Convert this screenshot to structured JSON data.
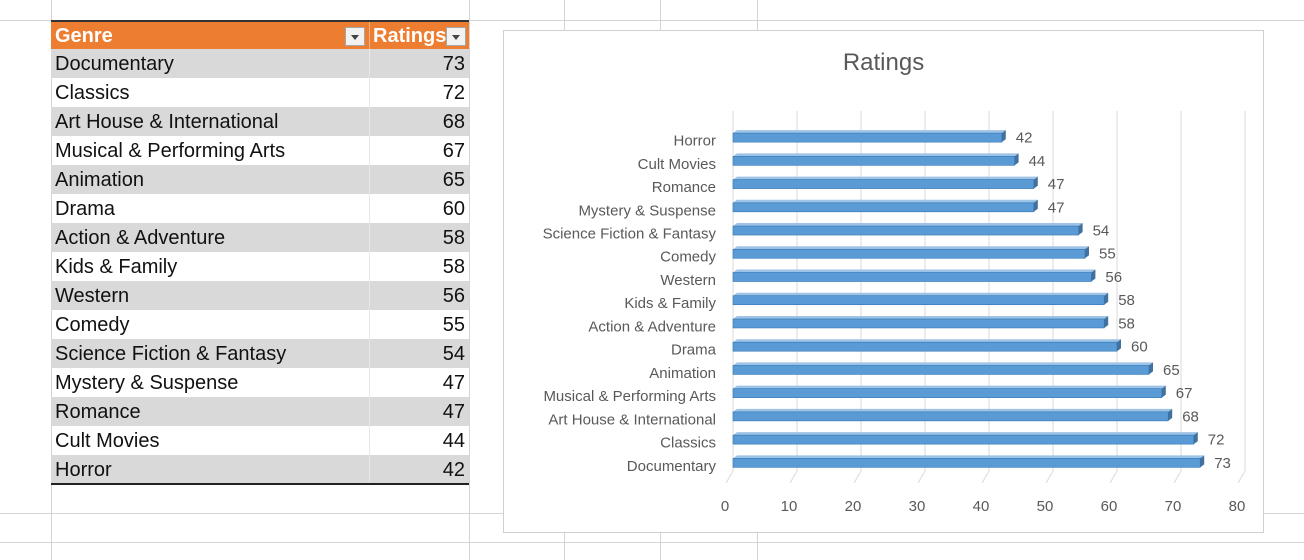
{
  "table": {
    "headers": [
      "Genre",
      "Ratings"
    ],
    "rows": [
      [
        "Documentary",
        "73"
      ],
      [
        "Classics",
        "72"
      ],
      [
        "Art House & International",
        "68"
      ],
      [
        "Musical & Performing Arts",
        "67"
      ],
      [
        "Animation",
        "65"
      ],
      [
        "Drama",
        "60"
      ],
      [
        "Action & Adventure",
        "58"
      ],
      [
        "Kids & Family",
        "58"
      ],
      [
        "Western",
        "56"
      ],
      [
        "Comedy",
        "55"
      ],
      [
        "Science Fiction & Fantasy",
        "54"
      ],
      [
        "Mystery & Suspense",
        "47"
      ],
      [
        "Romance",
        "47"
      ],
      [
        "Cult Movies",
        "44"
      ],
      [
        "Horror",
        "42"
      ]
    ]
  },
  "colors": {
    "header_bg": "#ed7d31",
    "band_bg": "#d9d9d9",
    "bar_fill": "#5b9bd5",
    "bar_shade": "#41719c"
  },
  "chart_data": {
    "type": "bar",
    "orientation": "horizontal",
    "title": "Ratings",
    "categories": [
      "Documentary",
      "Classics",
      "Art House & International",
      "Musical & Performing Arts",
      "Animation",
      "Drama",
      "Action & Adventure",
      "Kids & Family",
      "Western",
      "Comedy",
      "Science Fiction & Fantasy",
      "Mystery & Suspense",
      "Romance",
      "Cult Movies",
      "Horror"
    ],
    "values": [
      73,
      72,
      68,
      67,
      65,
      60,
      58,
      58,
      56,
      55,
      54,
      47,
      47,
      44,
      42
    ],
    "xlim": [
      0,
      80
    ],
    "xticks": [
      0,
      10,
      20,
      30,
      40,
      50,
      60,
      70,
      80
    ],
    "grid": true,
    "data_labels": true,
    "legend": "none"
  }
}
